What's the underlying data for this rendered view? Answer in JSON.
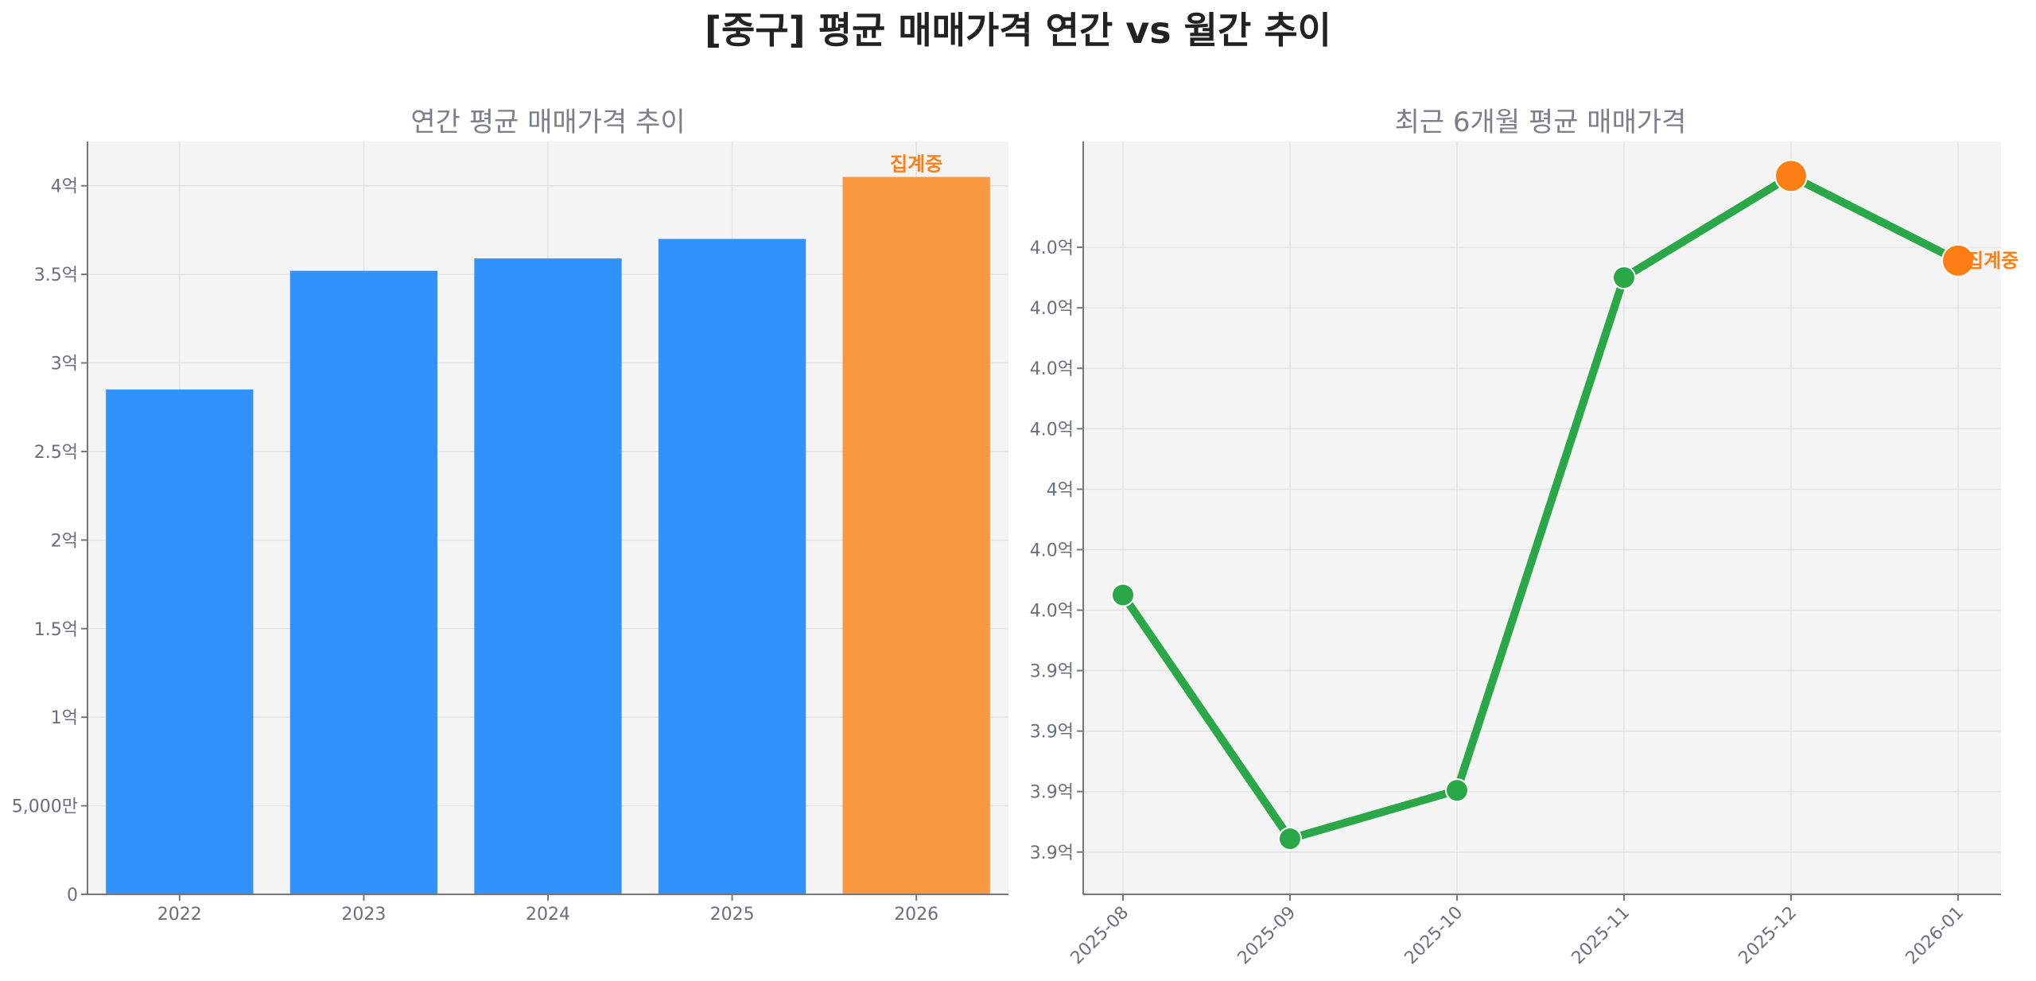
{
  "suptitle": "[중구] 평균 매매가격 연간 vs 월간 추이",
  "colors": {
    "bar_complete": "#3192fb",
    "bar_partial": "#f99841",
    "line": "#2aa747",
    "point_partial": "#fd7e14",
    "annotation": "#fd7e14",
    "plot_bg": "#f4f4f4"
  },
  "chart_data": [
    {
      "type": "bar",
      "title": "연간 평균 매매가격 추이",
      "categories": [
        "2022",
        "2023",
        "2024",
        "2025",
        "2026"
      ],
      "values": [
        285000000,
        352000000,
        359000000,
        370000000,
        405000000
      ],
      "partial": [
        false,
        false,
        false,
        false,
        true
      ],
      "annotation": {
        "category": "2026",
        "text": "집계중"
      },
      "ylim": [
        0,
        425000000
      ],
      "yticks": [
        0,
        50000000,
        100000000,
        150000000,
        200000000,
        250000000,
        300000000,
        350000000,
        400000000
      ],
      "ytick_labels": [
        "0",
        "5,000만",
        "1억",
        "1.5억",
        "2억",
        "2.5억",
        "3억",
        "3.5억",
        "4억"
      ],
      "grid": true,
      "xlabel": "",
      "ylabel": ""
    },
    {
      "type": "line",
      "title": "최근 6개월 평균 매매가격",
      "x": [
        "2025-08",
        "2025-09",
        "2025-10",
        "2025-11",
        "2025-12",
        "2026-01"
      ],
      "values": [
        398250000,
        394220000,
        395020000,
        403500000,
        405180000,
        403780000
      ],
      "partial": [
        false,
        false,
        false,
        false,
        true,
        true
      ],
      "annotation": {
        "x": "2026-01",
        "text": "집계중"
      },
      "ylim": [
        393300000,
        405750000
      ],
      "yticks": [
        394000000,
        395000000,
        396000000,
        397000000,
        398000000,
        399000000,
        400000000,
        401000000,
        402000000,
        403000000,
        404000000
      ],
      "ytick_labels": [
        "3.9억",
        "3.9억",
        "3.9억",
        "3.9억",
        "4.0억",
        "4.0억",
        "4억",
        "4.0억",
        "4.0억",
        "4.0억",
        "4.0억"
      ],
      "grid": true,
      "xlabel": "",
      "ylabel": ""
    }
  ]
}
